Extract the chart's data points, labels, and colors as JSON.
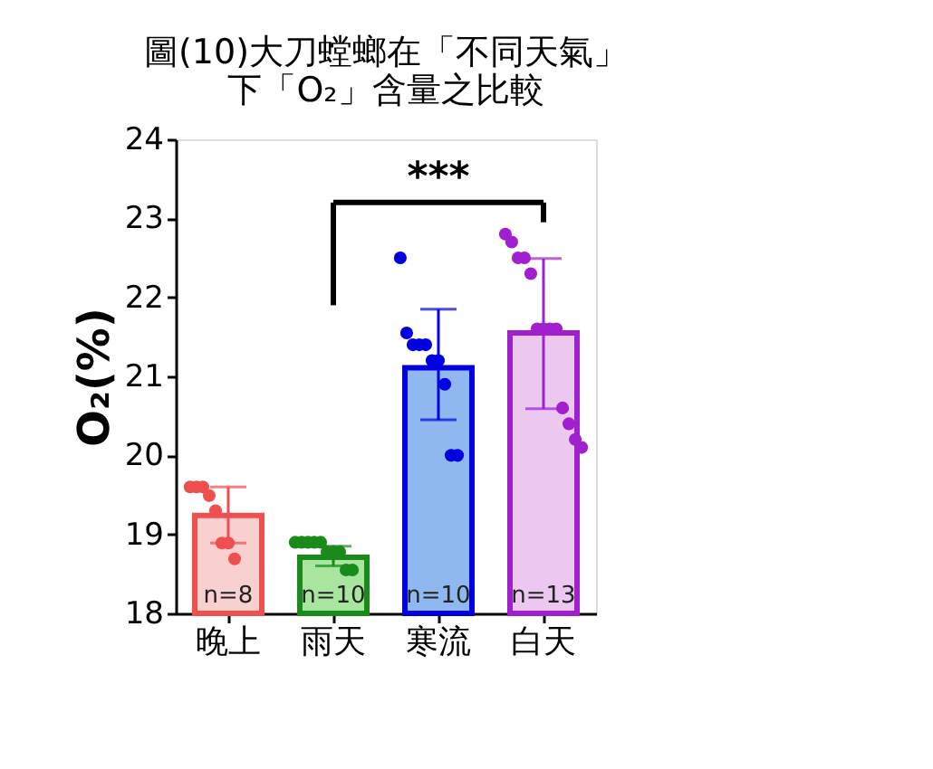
{
  "chart_data": {
    "type": "bar",
    "title": "圖(10)大刀螳螂在「不同天氣」下「O₂」含量之比較",
    "ylabel": "O₂(%)",
    "categories": [
      "晚上",
      "雨天",
      "寒流",
      "白天"
    ],
    "ylim": [
      18,
      24
    ],
    "yticks": [
      18,
      19,
      20,
      21,
      22,
      23,
      24
    ],
    "grid": false,
    "series": [
      {
        "values": [
          19.24,
          18.71,
          21.11,
          21.55
        ],
        "colors": [
          "#f9d0d0",
          "#a8e6a0",
          "#8fb8f0",
          "#ecc8f0"
        ],
        "errors": [
          [
            18.89,
            19.6
          ],
          [
            18.6,
            18.85
          ],
          [
            20.45,
            21.85
          ],
          [
            20.59,
            22.49
          ]
        ]
      },
      {
        "type": "scatter",
        "color": "#f04f4f",
        "x": [
          "晚上",
          "晚上",
          "晚上",
          "晚上",
          "晚上",
          "晚上",
          "晚上",
          "晚上"
        ],
        "values": [
          19.6,
          19.6,
          19.6,
          19.49,
          19.3,
          18.89,
          18.89,
          18.69
        ]
      },
      {
        "type": "scatter",
        "color": "#1a8a1a",
        "x": [
          "雨天",
          "雨天",
          "雨天",
          "雨天",
          "雨天",
          "雨天",
          "雨天",
          "雨天",
          "雨天",
          "雨天"
        ],
        "values": [
          18.9,
          18.9,
          18.9,
          18.9,
          18.9,
          18.78,
          18.78,
          18.78,
          18.55,
          18.55
        ]
      },
      {
        "type": "scatter",
        "color": "#0000e0",
        "x": [
          "寒流",
          "寒流",
          "寒流",
          "寒流",
          "寒流",
          "寒流",
          "寒流",
          "寒流",
          "寒流",
          "寒流"
        ],
        "values": [
          22.5,
          21.55,
          21.4,
          21.4,
          21.4,
          21.2,
          21.2,
          20.9,
          20.0,
          20.0
        ]
      },
      {
        "type": "scatter",
        "color": "#a020d0",
        "x": [
          "白天",
          "白天",
          "白天",
          "白天",
          "白天",
          "白天",
          "白天",
          "白天",
          "白天",
          "白天",
          "白天",
          "白天",
          "白天"
        ],
        "values": [
          22.8,
          22.7,
          22.5,
          22.5,
          22.3,
          21.6,
          21.6,
          21.6,
          21.6,
          20.6,
          20.4,
          20.2,
          20.1
        ]
      }
    ],
    "annotations": [
      "***",
      "n=8",
      "n=10",
      "n=10",
      "n=13"
    ]
  }
}
